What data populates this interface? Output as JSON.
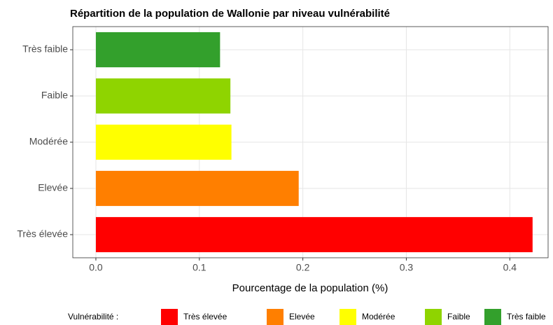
{
  "chart_data": {
    "type": "barh",
    "title": "Répartition de la population de Wallonie par niveau vulnérabilité",
    "categories": [
      "Très faible",
      "Faible",
      "Modérée",
      "Elevée",
      "Très élevée"
    ],
    "values": [
      0.12,
      0.13,
      0.131,
      0.196,
      0.422
    ],
    "colors": [
      "#33a02c",
      "#8fd400",
      "#ffff00",
      "#ff7f00",
      "#ff0000"
    ],
    "xlabel": "Pourcentage de la population (%)",
    "xlim": [
      -0.0223,
      0.437
    ],
    "xticks": [
      {
        "value": 0,
        "label": "0.0"
      },
      0.1,
      0.2,
      0.3,
      0.4
    ],
    "grid": true,
    "legend_title": "Vulnérabilité :",
    "legend": "bottom"
  }
}
